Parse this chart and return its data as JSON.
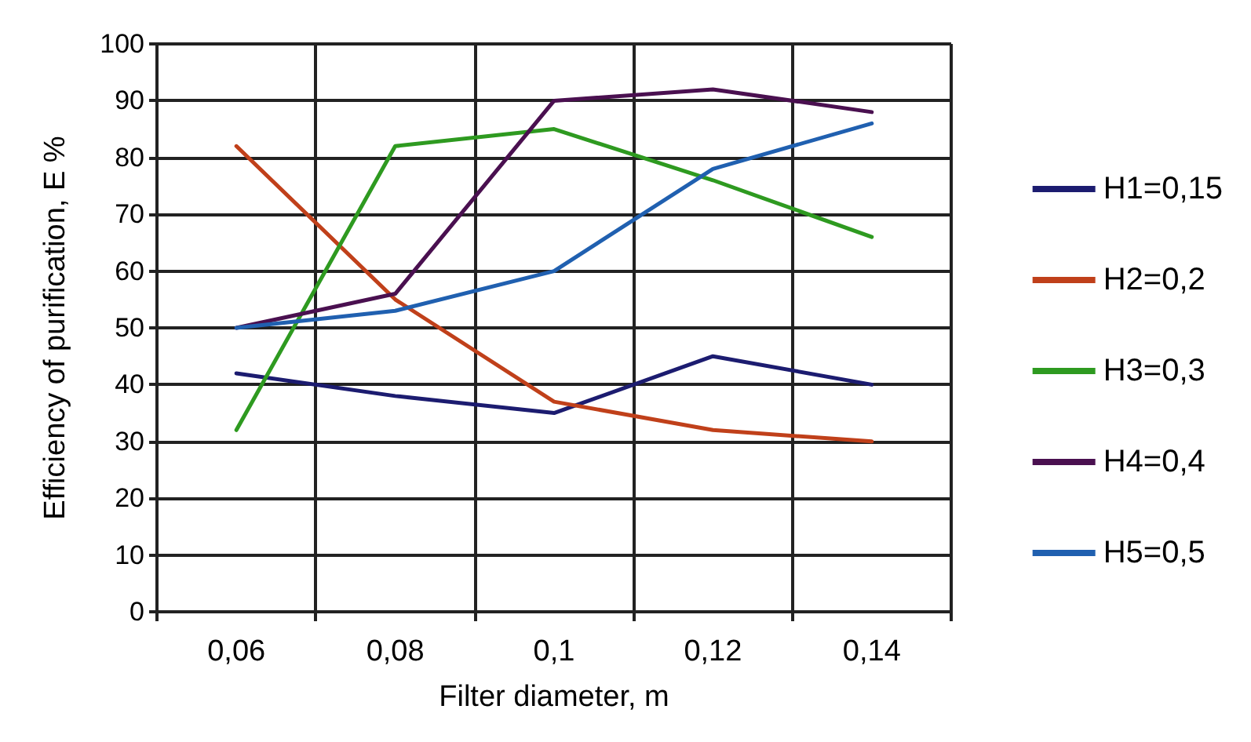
{
  "chart_data": {
    "type": "line",
    "xlabel": "Filter diameter, m",
    "ylabel": "Efficiency of purification, E %",
    "categories": [
      "0,06",
      "0,08",
      "0,1",
      "0,12",
      "0,14"
    ],
    "ylim": [
      0,
      100
    ],
    "yticks": [
      0,
      10,
      20,
      30,
      40,
      50,
      60,
      70,
      80,
      90,
      100
    ],
    "grid": true,
    "legend": "right",
    "marker": "none",
    "line_style": "solid",
    "series": [
      {
        "name": "H1=0,15",
        "color": "#1c1c70",
        "values": [
          42,
          38,
          35,
          45,
          40
        ]
      },
      {
        "name": "H2=0,2",
        "color": "#c0401a",
        "values": [
          82,
          55,
          37,
          32,
          30
        ]
      },
      {
        "name": "H3=0,3",
        "color": "#2e9a20",
        "values": [
          32,
          82,
          85,
          76,
          66
        ]
      },
      {
        "name": "H4=0,4",
        "color": "#4a1050",
        "values": [
          50,
          56,
          90,
          92,
          88
        ]
      },
      {
        "name": "H5=0,5",
        "color": "#2060b0",
        "values": [
          50,
          53,
          60,
          78,
          86
        ]
      }
    ]
  }
}
